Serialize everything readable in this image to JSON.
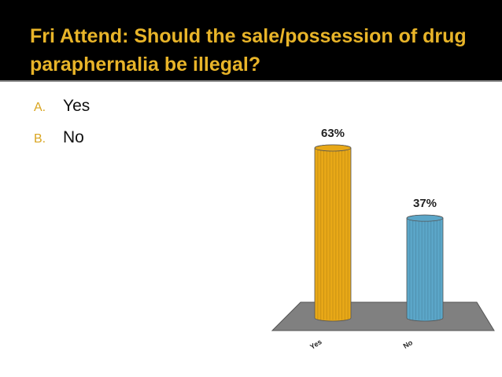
{
  "slide": {
    "title": "Fri Attend:  Should the sale/possession of drug paraphernalia be illegal?",
    "options": [
      {
        "marker": "A.",
        "text": "Yes"
      },
      {
        "marker": "B.",
        "text": "No"
      }
    ]
  },
  "chart_data": {
    "type": "bar",
    "categories": [
      "Yes",
      "No"
    ],
    "values": [
      63,
      37
    ],
    "value_labels": [
      "63%",
      "37%"
    ],
    "colors": [
      "#e8a817",
      "#5ba6c8"
    ]
  }
}
